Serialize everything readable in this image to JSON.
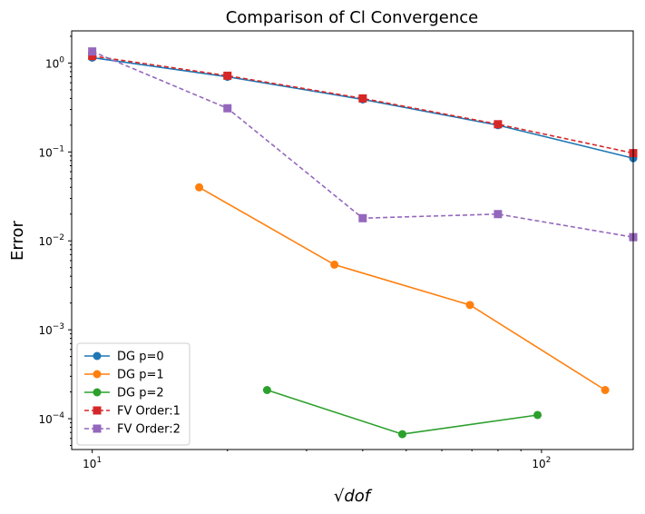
{
  "chart_data": {
    "type": "line",
    "title": "Comparison of Cl Convergence",
    "xlabel": "√dof",
    "ylabel": "Error",
    "xscale": "log",
    "yscale": "log",
    "xlim": [
      9.0,
      160
    ],
    "ylim": [
      4.5e-05,
      2.3
    ],
    "grid": false,
    "legend_position": "lower-left",
    "x_ticks": [
      {
        "value": 10,
        "label": "10",
        "base": "10",
        "exp": "1"
      },
      {
        "value": 100,
        "label": "10",
        "base": "10",
        "exp": "2"
      }
    ],
    "y_ticks": [
      {
        "value": 0.0001,
        "base": "10",
        "exp": "−4"
      },
      {
        "value": 0.001,
        "base": "10",
        "exp": "−3"
      },
      {
        "value": 0.01,
        "base": "10",
        "exp": "−2"
      },
      {
        "value": 0.1,
        "base": "10",
        "exp": "−1"
      },
      {
        "value": 1,
        "base": "10",
        "exp": "0"
      }
    ],
    "series": [
      {
        "name": "DG p=0",
        "color": "#1f77b4",
        "linestyle": "solid",
        "marker": "circle",
        "x": [
          10,
          20,
          40,
          80,
          160
        ],
        "y": [
          1.15,
          0.7,
          0.39,
          0.2,
          0.085
        ]
      },
      {
        "name": "DG p=1",
        "color": "#ff7f0e",
        "linestyle": "solid",
        "marker": "circle",
        "x": [
          17.3,
          34.6,
          69.3,
          138.6
        ],
        "y": [
          0.04,
          0.0054,
          0.0019,
          0.00021
        ]
      },
      {
        "name": "DG p=2",
        "color": "#2ca02c",
        "linestyle": "solid",
        "marker": "circle",
        "x": [
          24.5,
          49,
          98
        ],
        "y": [
          0.00021,
          6.7e-05,
          0.00011
        ]
      },
      {
        "name": "FV Order:1",
        "color": "#d62728",
        "linestyle": "dashed",
        "marker": "square",
        "x": [
          10,
          20,
          40,
          80,
          160
        ],
        "y": [
          1.2,
          0.72,
          0.4,
          0.205,
          0.097
        ]
      },
      {
        "name": "FV Order:2",
        "color": "#9467bd",
        "linestyle": "dashed",
        "marker": "square",
        "x": [
          10,
          20,
          40,
          80,
          160
        ],
        "y": [
          1.35,
          0.31,
          0.018,
          0.02,
          0.011
        ]
      }
    ]
  }
}
